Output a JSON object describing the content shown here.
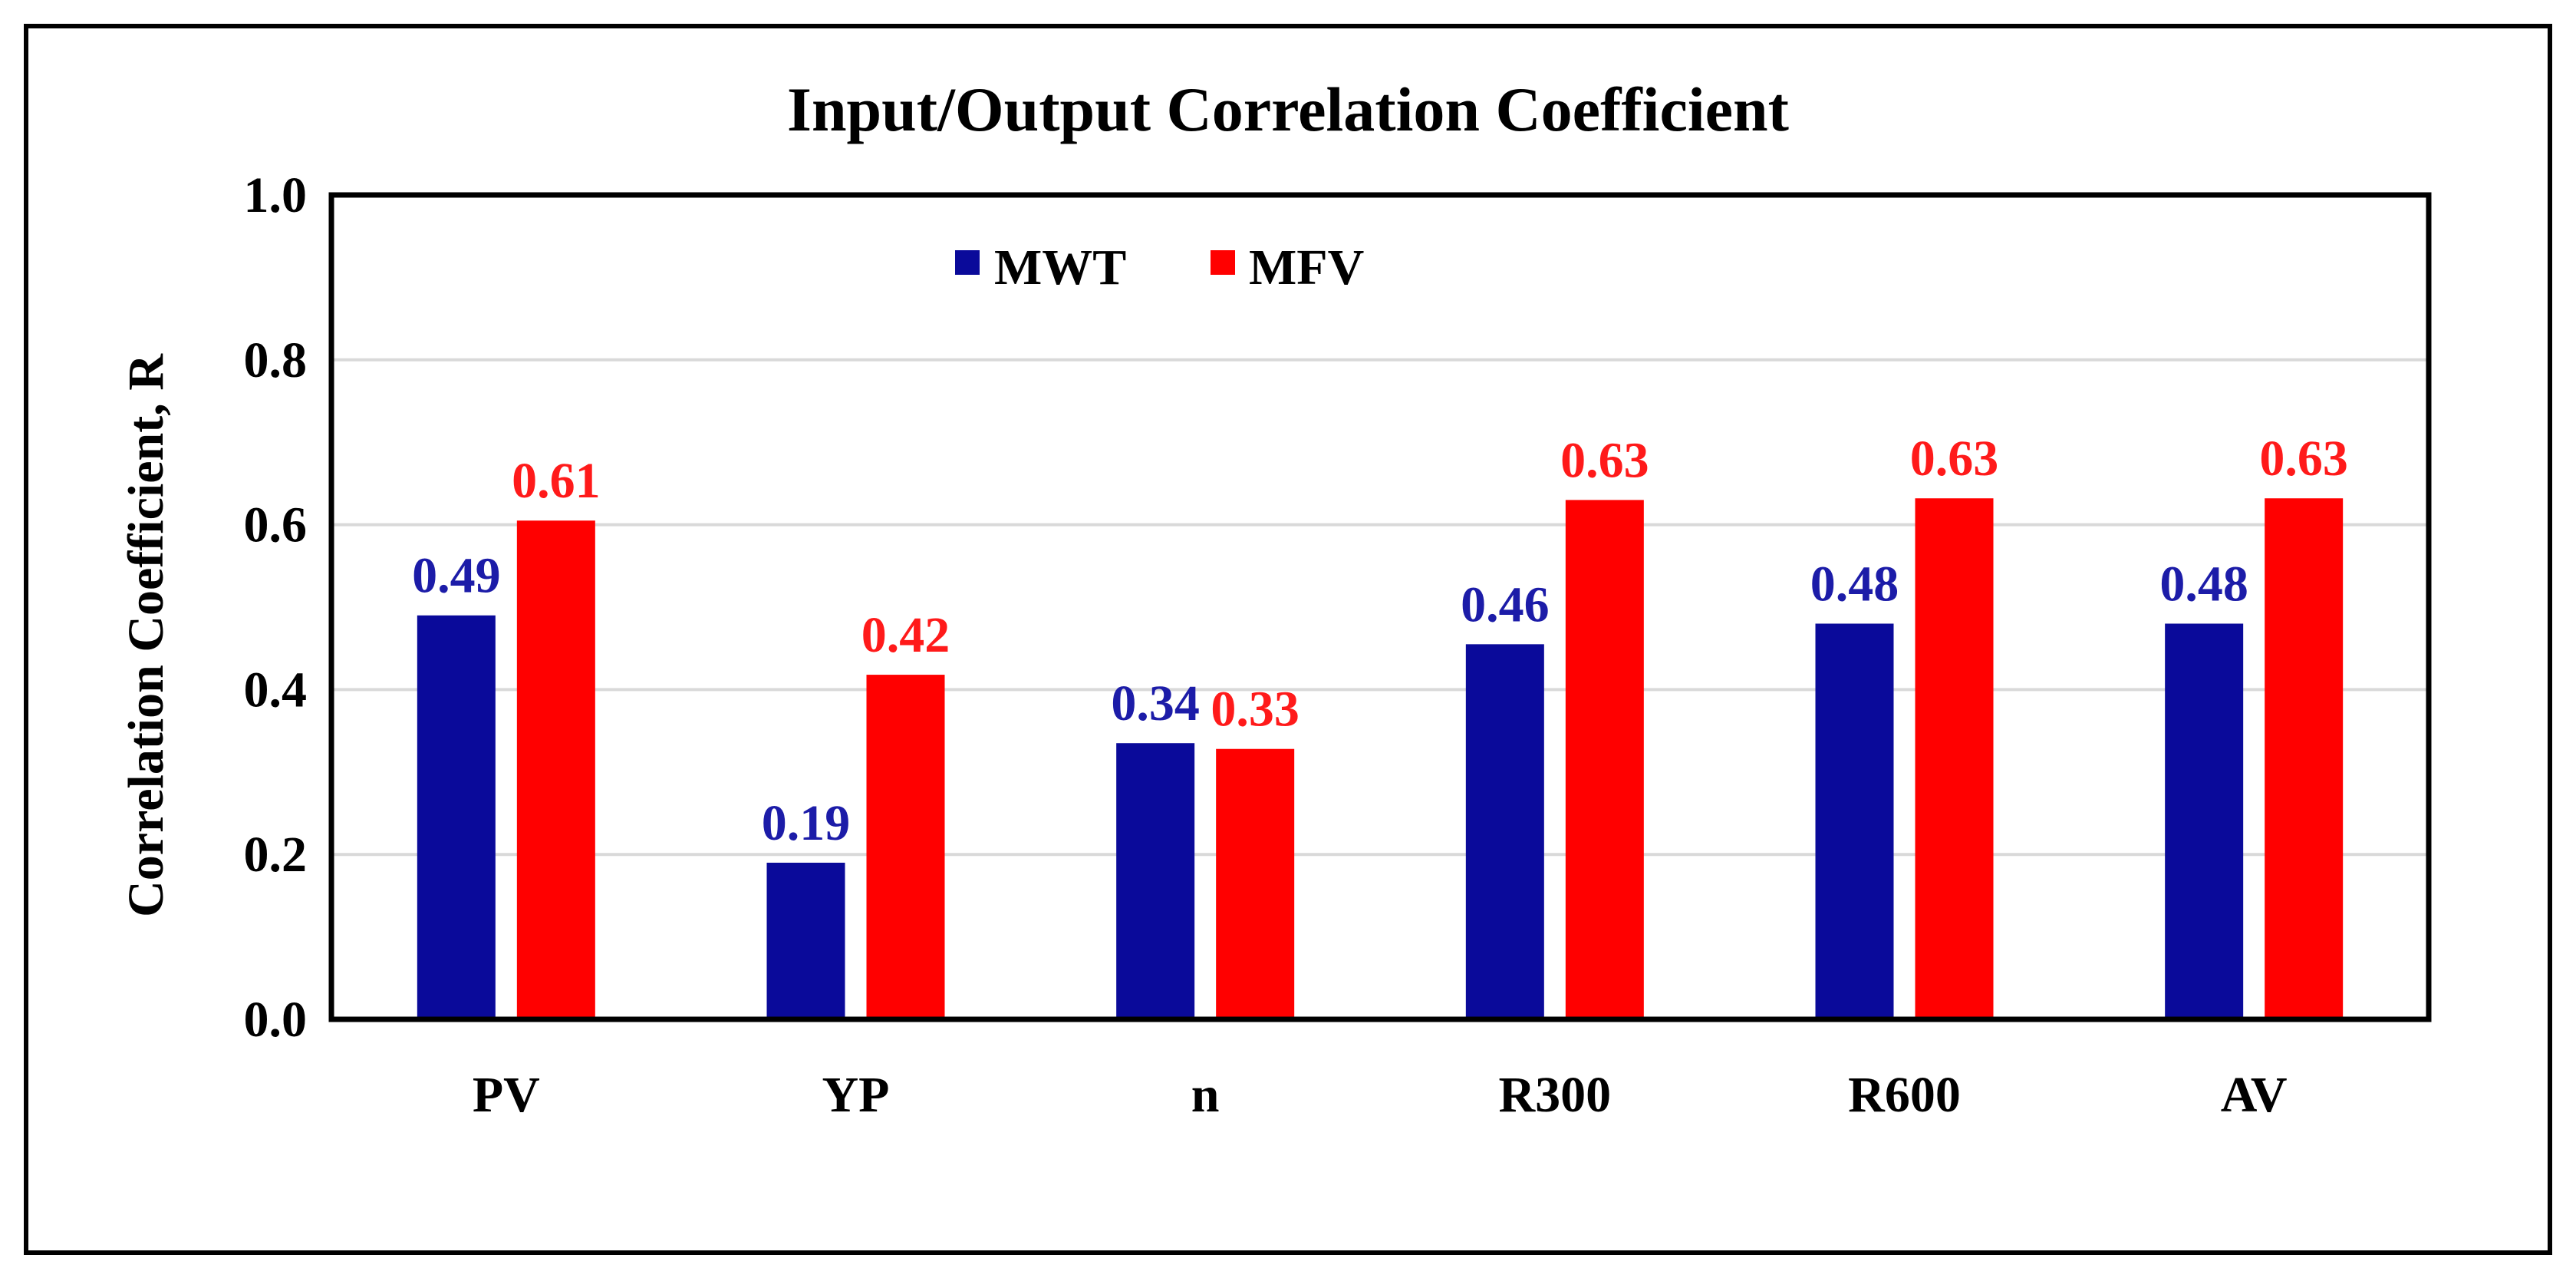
{
  "chart_data": {
    "type": "bar",
    "title": "Input/Output Correlation Coefficient",
    "xlabel": "",
    "ylabel": "Correlation Coefficient, R",
    "categories": [
      "PV",
      "YP",
      "n",
      "R300",
      "R600",
      "AV"
    ],
    "series": [
      {
        "name": "MWT",
        "color": "#0a0a9a",
        "label_color": "#1c1ca8",
        "values": [
          0.49,
          0.19,
          0.335,
          0.455,
          0.48,
          0.48
        ],
        "labels": [
          "0.49",
          "0.19",
          "0.34",
          "0.46",
          "0.48",
          "0.48"
        ]
      },
      {
        "name": "MFV",
        "color": "#ff0000",
        "label_color": "#ff1a1a",
        "values": [
          0.605,
          0.418,
          0.328,
          0.63,
          0.632,
          0.632
        ],
        "labels": [
          "0.61",
          "0.42",
          "0.33",
          "0.63",
          "0.63",
          "0.63"
        ]
      }
    ],
    "ylim": [
      0,
      1.0
    ],
    "yticks": [
      "0.0",
      "0.2",
      "0.4",
      "0.6",
      "0.8",
      "1.0"
    ],
    "ytick_values": [
      0,
      0.2,
      0.4,
      0.6,
      0.8,
      1.0
    ],
    "grid": true,
    "legend": "top-left inside plot"
  }
}
